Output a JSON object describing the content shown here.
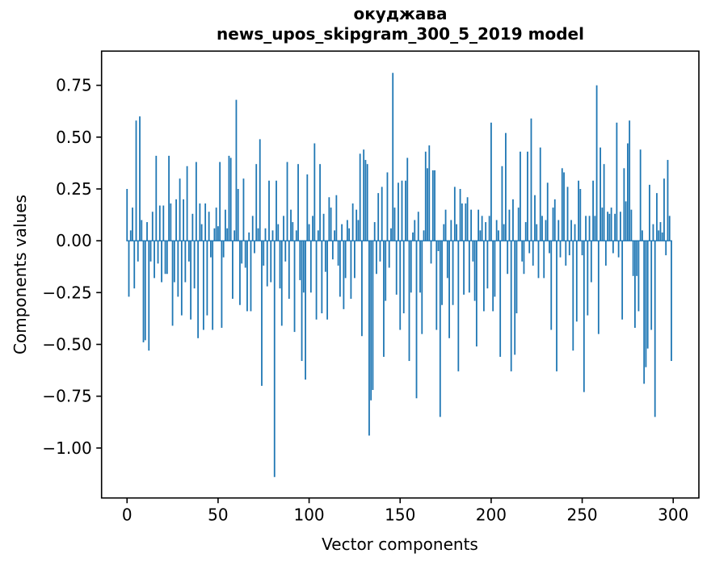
{
  "chart_data": {
    "type": "bar",
    "title_lines": [
      "окуджава",
      "news_upos_skipgram_300_5_2019 model"
    ],
    "xlabel": "Vector components",
    "ylabel": "Components values",
    "x_ticks": [
      0,
      50,
      100,
      150,
      200,
      250,
      300
    ],
    "y_ticks": [
      0.75,
      0.5,
      0.25,
      0.0,
      -0.25,
      -0.5,
      -0.75,
      -1.0
    ],
    "xlim": [
      -14,
      314.1
    ],
    "ylim": [
      -1.241,
      0.915
    ],
    "grid": false,
    "legend": null,
    "bar_color": "#1f77b4",
    "frame_color": "#000000",
    "bar_width": 0.8,
    "zero_line": true,
    "n_components": 300,
    "values": [
      0.25,
      -0.27,
      0.05,
      0.16,
      -0.23,
      0.58,
      -0.1,
      0.6,
      0.1,
      -0.49,
      -0.48,
      0.09,
      -0.53,
      -0.1,
      0.14,
      -0.18,
      0.41,
      -0.11,
      0.17,
      -0.2,
      0.17,
      -0.16,
      -0.16,
      0.41,
      0.18,
      -0.41,
      -0.2,
      0.2,
      -0.27,
      0.3,
      -0.36,
      0.2,
      -0.2,
      0.36,
      -0.1,
      -0.38,
      0.13,
      -0.23,
      0.38,
      -0.47,
      0.18,
      0.08,
      -0.43,
      0.18,
      -0.36,
      0.14,
      -0.08,
      -0.43,
      0.06,
      0.16,
      0.07,
      0.38,
      -0.42,
      -0.08,
      0.15,
      0.06,
      0.41,
      0.4,
      -0.28,
      0.05,
      0.68,
      0.25,
      -0.31,
      -0.11,
      0.3,
      -0.13,
      -0.34,
      0.04,
      -0.34,
      0.12,
      -0.06,
      0.37,
      0.06,
      0.49,
      -0.7,
      -0.12,
      0.06,
      -0.22,
      0.29,
      -0.2,
      0.05,
      -1.14,
      0.29,
      0.08,
      -0.23,
      -0.41,
      0.12,
      -0.1,
      0.38,
      -0.28,
      0.15,
      0.09,
      -0.44,
      0.05,
      0.37,
      -0.19,
      -0.58,
      -0.25,
      -0.67,
      0.32,
      0.08,
      -0.25,
      0.12,
      0.47,
      -0.38,
      0.05,
      0.37,
      -0.35,
      0.13,
      -0.15,
      -0.38,
      0.21,
      0.16,
      -0.09,
      0.05,
      0.22,
      -0.12,
      -0.27,
      0.08,
      -0.33,
      -0.18,
      0.1,
      0.06,
      -0.28,
      0.18,
      -0.18,
      0.15,
      0.1,
      0.42,
      -0.46,
      0.44,
      0.39,
      0.37,
      -0.94,
      -0.77,
      -0.72,
      0.09,
      -0.16,
      0.23,
      -0.1,
      0.26,
      -0.56,
      -0.29,
      0.33,
      -0.13,
      0.06,
      0.81,
      0.16,
      -0.26,
      0.28,
      -0.43,
      0.29,
      -0.35,
      0.29,
      0.4,
      -0.58,
      -0.25,
      0.04,
      0.1,
      -0.76,
      0.14,
      -0.25,
      -0.45,
      0.05,
      0.43,
      0.35,
      0.46,
      -0.11,
      0.34,
      0.34,
      -0.43,
      -0.05,
      -0.85,
      -0.31,
      0.08,
      0.15,
      -0.18,
      -0.47,
      0.1,
      -0.31,
      0.26,
      0.08,
      -0.63,
      0.25,
      0.18,
      -0.26,
      0.18,
      0.21,
      -0.25,
      0.15,
      -0.1,
      -0.29,
      -0.51,
      0.15,
      0.05,
      0.12,
      -0.34,
      0.09,
      -0.23,
      0.12,
      0.57,
      -0.34,
      -0.27,
      0.1,
      0.05,
      -0.56,
      0.36,
      0.08,
      0.52,
      -0.16,
      0.15,
      -0.63,
      0.2,
      -0.55,
      -0.35,
      0.16,
      0.43,
      -0.1,
      -0.16,
      0.09,
      0.43,
      -0.06,
      0.59,
      -0.12,
      0.22,
      0.08,
      -0.18,
      0.45,
      0.12,
      -0.18,
      0.1,
      0.28,
      -0.06,
      -0.43,
      0.16,
      0.2,
      -0.63,
      0.1,
      -0.08,
      0.35,
      0.33,
      -0.12,
      0.26,
      -0.07,
      0.1,
      -0.53,
      0.08,
      -0.39,
      0.29,
      0.25,
      -0.07,
      -0.73,
      0.12,
      -0.36,
      0.12,
      -0.2,
      0.29,
      0.12,
      0.75,
      -0.45,
      0.45,
      0.16,
      0.37,
      -0.12,
      0.14,
      0.13,
      0.16,
      -0.06,
      0.13,
      0.57,
      -0.08,
      0.14,
      -0.38,
      0.35,
      0.19,
      0.47,
      0.58,
      0.15,
      -0.17,
      -0.42,
      -0.17,
      -0.34,
      0.44,
      0.05,
      -0.69,
      -0.61,
      -0.52,
      0.27,
      -0.43,
      0.08,
      -0.85,
      0.23,
      0.05,
      0.09,
      0.04,
      0.3,
      -0.07,
      0.39,
      0.12,
      -0.58
    ]
  }
}
